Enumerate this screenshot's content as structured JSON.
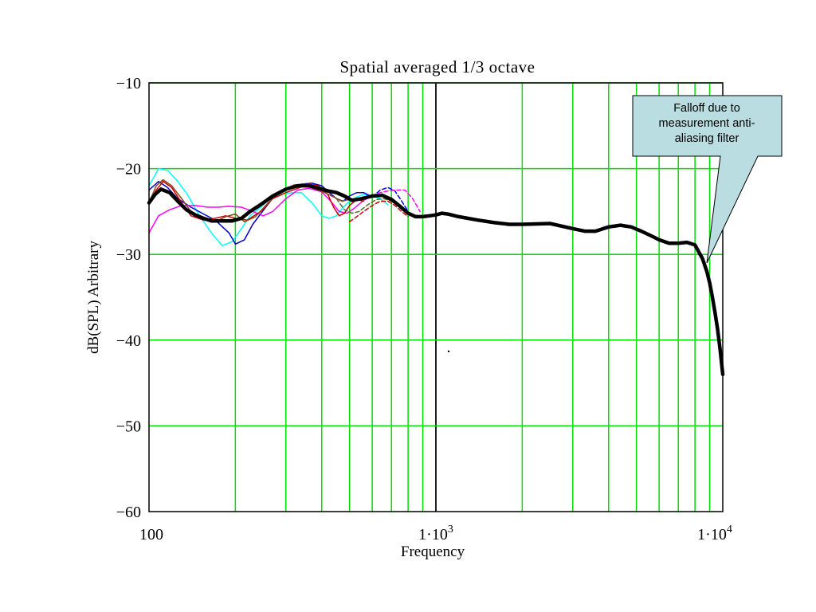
{
  "chart_data": {
    "type": "line",
    "title": "Spatial averaged 1/3 octave",
    "xlabel": "Frequency",
    "ylabel": "dB(SPL) Arbitrary",
    "x_scale": "log",
    "xlim": [
      100,
      10000
    ],
    "ylim": [
      -60,
      -10
    ],
    "x_ticks": [
      {
        "value": 100,
        "label": "100"
      },
      {
        "value": 1000,
        "label": "1·10",
        "exp": "3"
      },
      {
        "value": 10000,
        "label": "1·10",
        "exp": "4"
      }
    ],
    "y_ticks": [
      {
        "value": -10,
        "label": "−10"
      },
      {
        "value": -20,
        "label": "−20"
      },
      {
        "value": -30,
        "label": "−30"
      },
      {
        "value": -40,
        "label": "−40"
      },
      {
        "value": -50,
        "label": "−50"
      },
      {
        "value": -60,
        "label": "−60"
      }
    ],
    "grid": true,
    "grid_color": "#00e000",
    "annotation": {
      "text_lines": [
        "Falloff due to",
        "measurement anti-",
        "aliasing filter"
      ],
      "target": {
        "x": 8800,
        "y": -31
      },
      "box_color": "#b9dde0"
    },
    "series": [
      {
        "color": "#00ffff",
        "width": 1.5,
        "dash": false,
        "x": [
          100,
          108,
          116,
          126,
          136,
          150,
          165,
          180,
          195,
          210,
          225,
          245,
          265,
          290,
          315,
          340,
          370,
          400,
          425,
          450,
          475,
          500,
          530,
          560,
          600,
          640,
          680
        ],
        "y": [
          -22,
          -20,
          -20.2,
          -21.5,
          -23,
          -25.5,
          -27.5,
          -29,
          -28.5,
          -27,
          -25.5,
          -24.5,
          -23.5,
          -23,
          -22.8,
          -22.8,
          -24,
          -25.5,
          -25.8,
          -25.5,
          -24.5,
          -23.8,
          -23.3,
          -23,
          -23.2,
          -23.5,
          -24.2
        ]
      },
      {
        "color": "#0000cc",
        "width": 1.5,
        "dash": false,
        "x": [
          100,
          108,
          116,
          126,
          140,
          155,
          170,
          190,
          200,
          215,
          230,
          255,
          280,
          310,
          340,
          370,
          400,
          425,
          450,
          475,
          500,
          530,
          560,
          600
        ],
        "y": [
          -22.5,
          -21.5,
          -22.2,
          -23.5,
          -24.5,
          -25.3,
          -26,
          -27.5,
          -28.8,
          -28.3,
          -26.5,
          -24.5,
          -22.8,
          -22.2,
          -21.8,
          -21.7,
          -22,
          -22.8,
          -23.5,
          -23.8,
          -23.2,
          -22.8,
          -22.8,
          -23.3
        ]
      },
      {
        "color": "#0000ff",
        "width": 1.5,
        "dash": true,
        "x": [
          600,
          640,
          680,
          720,
          760,
          800
        ],
        "y": [
          -23.3,
          -22.5,
          -22.2,
          -22.6,
          -23.8,
          -25
        ]
      },
      {
        "color": "#ff00ff",
        "width": 1.5,
        "dash": false,
        "x": [
          100,
          108,
          118,
          130,
          145,
          160,
          175,
          190,
          210,
          230,
          250,
          270,
          300,
          330,
          360,
          400,
          430,
          460,
          490,
          520,
          560,
          600
        ],
        "y": [
          -27.5,
          -25.5,
          -24.8,
          -24.3,
          -24.3,
          -24.5,
          -24.5,
          -24.4,
          -24.5,
          -25,
          -25.5,
          -25,
          -23.5,
          -22.5,
          -22.3,
          -22.7,
          -23.8,
          -25,
          -25.2,
          -24.6,
          -23.7,
          -23.2
        ]
      },
      {
        "color": "#ff00ff",
        "width": 1.5,
        "dash": true,
        "x": [
          600,
          640,
          680,
          730,
          780,
          830,
          880
        ],
        "y": [
          -23.2,
          -22.8,
          -22.6,
          -22.5,
          -22.5,
          -23.5,
          -25
        ]
      },
      {
        "color": "#cc0000",
        "width": 1.5,
        "dash": false,
        "x": [
          100,
          106,
          112,
          120,
          130,
          140,
          155,
          170,
          185,
          200,
          220,
          245,
          270,
          300,
          330,
          360,
          390,
          420,
          440,
          460,
          480,
          500,
          530,
          560
        ],
        "y": [
          -24,
          -22.5,
          -21.5,
          -22.2,
          -24,
          -25.5,
          -26,
          -25.8,
          -25.5,
          -25.8,
          -26,
          -25,
          -23.5,
          -22.8,
          -22.3,
          -21.8,
          -22,
          -23,
          -24.5,
          -25.5,
          -25.2,
          -24.3,
          -23.6,
          -23.8
        ]
      },
      {
        "color": "#cc0000",
        "width": 1.5,
        "dash": true,
        "x": [
          500,
          530,
          560,
          600,
          640,
          680,
          720,
          760,
          800
        ],
        "y": [
          -26.2,
          -25.6,
          -25,
          -24.3,
          -23.8,
          -23.8,
          -24.3,
          -25,
          -25.6
        ]
      },
      {
        "color": "#8b4513",
        "width": 1.5,
        "dash": false,
        "x": [
          100,
          106,
          112,
          120,
          130,
          140,
          155,
          170,
          185,
          200,
          215,
          235,
          260,
          290,
          320,
          350,
          380,
          410,
          440,
          470,
          500
        ],
        "y": [
          -24,
          -22,
          -21.3,
          -22,
          -23.5,
          -25,
          -26,
          -26.2,
          -25.6,
          -25.3,
          -26.2,
          -25.6,
          -24,
          -22.6,
          -21.9,
          -21.8,
          -22.4,
          -22.8,
          -23.3,
          -23.8,
          -23.6
        ]
      },
      {
        "color": "#556b2f",
        "width": 1.5,
        "dash": true,
        "x": [
          450,
          480,
          510,
          540,
          580,
          620,
          660,
          700,
          750,
          800
        ],
        "y": [
          -23.5,
          -24.8,
          -25.2,
          -25,
          -24.2,
          -23.6,
          -23.5,
          -23.8,
          -24.5,
          -25.3
        ]
      },
      {
        "color": "#000000",
        "width": 4.5,
        "dash": false,
        "x": [
          100,
          105,
          110,
          118,
          126,
          135,
          145,
          155,
          165,
          180,
          195,
          210,
          225,
          245,
          270,
          300,
          330,
          360,
          390,
          420,
          450,
          480,
          510,
          550,
          600,
          650,
          700,
          750,
          800,
          850,
          900,
          950,
          1000,
          1050,
          1100,
          1200,
          1400,
          1600,
          1800,
          2000,
          2500,
          3000,
          3300,
          3600,
          4000,
          4400,
          4800,
          5200,
          5600,
          6000,
          6500,
          7000,
          7500,
          8000,
          8500,
          8800,
          9000,
          9200,
          9400,
          9600,
          9800,
          10000
        ],
        "y": [
          -24,
          -23,
          -22.4,
          -22.8,
          -23.8,
          -24.8,
          -25.4,
          -25.8,
          -26.1,
          -26.1,
          -26.1,
          -25.8,
          -25,
          -24.2,
          -23.2,
          -22.4,
          -22,
          -22,
          -22.3,
          -22.6,
          -22.8,
          -23.2,
          -23.7,
          -23.5,
          -23.2,
          -23.1,
          -23.6,
          -24.4,
          -25.2,
          -25.6,
          -25.6,
          -25.5,
          -25.4,
          -25.2,
          -25.3,
          -25.6,
          -26,
          -26.3,
          -26.5,
          -26.5,
          -26.4,
          -27,
          -27.3,
          -27.3,
          -26.8,
          -26.6,
          -26.8,
          -27.3,
          -27.8,
          -28.3,
          -28.7,
          -28.7,
          -28.6,
          -28.9,
          -30.5,
          -32,
          -33.3,
          -35,
          -36.8,
          -38.8,
          -41.2,
          -44
        ]
      }
    ]
  }
}
